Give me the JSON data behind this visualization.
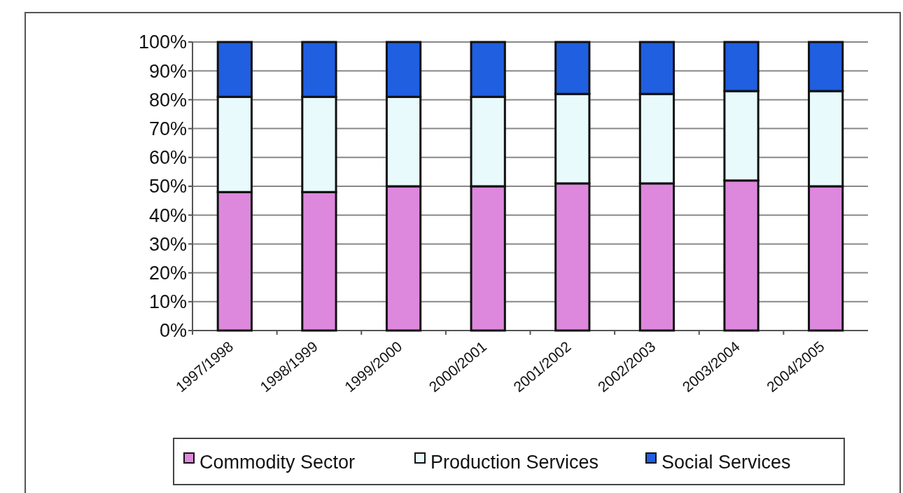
{
  "chart_data": {
    "type": "bar",
    "stacked": true,
    "categories": [
      "1997/1998",
      "1998/1999",
      "1999/2000",
      "2000/2001",
      "2001/2002",
      "2002/2003",
      "2003/2004",
      "2004/2005"
    ],
    "series": [
      {
        "name": "Commodity Sector",
        "color": "#dd88dd",
        "values": [
          48,
          48,
          50,
          50,
          51,
          51,
          52,
          50
        ]
      },
      {
        "name": "Production Services",
        "color": "#e8fafc",
        "values": [
          33,
          33,
          31,
          31,
          31,
          31,
          31,
          33
        ]
      },
      {
        "name": "Social Services",
        "color": "#1f5fe0",
        "values": [
          19,
          19,
          19,
          19,
          18,
          18,
          17,
          17
        ]
      }
    ],
    "ylim": [
      0,
      100
    ],
    "yticks": [
      {
        "value": 0,
        "label": "0%"
      },
      {
        "value": 10,
        "label": "10%"
      },
      {
        "value": 20,
        "label": "20%"
      },
      {
        "value": 30,
        "label": "30%"
      },
      {
        "value": 40,
        "label": "40%"
      },
      {
        "value": 50,
        "label": "50%"
      },
      {
        "value": 60,
        "label": "60%"
      },
      {
        "value": 70,
        "label": "70%"
      },
      {
        "value": 80,
        "label": "80%"
      },
      {
        "value": 90,
        "label": "90%"
      },
      {
        "value": 100,
        "label": "100%"
      }
    ],
    "grid": "y",
    "legend": "bottom"
  }
}
